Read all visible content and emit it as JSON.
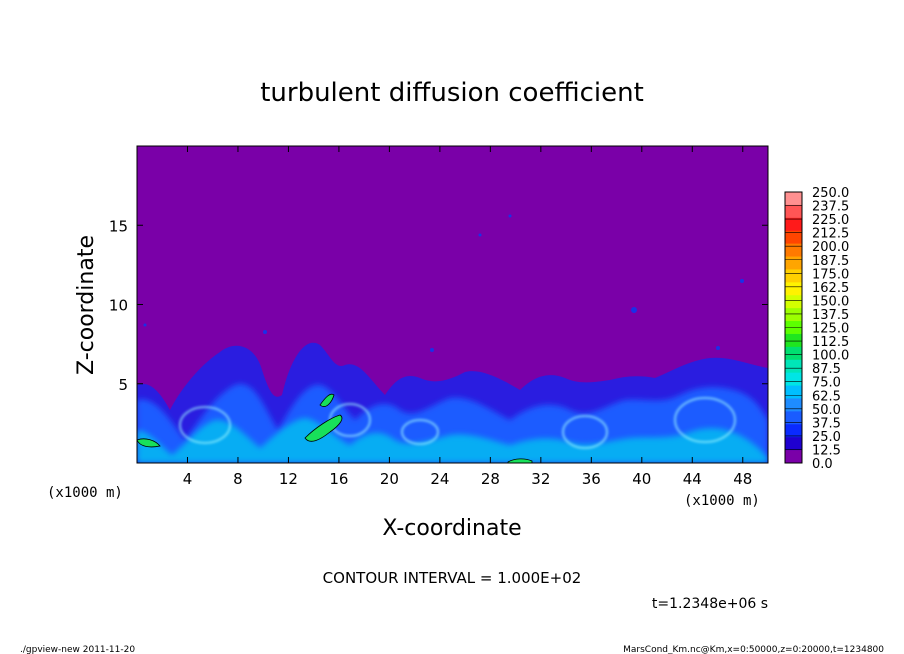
{
  "chart_data": {
    "type": "heatmap",
    "title": "turbulent diffusion coefficient",
    "xlabel": "X-coordinate",
    "ylabel": "Z-coordinate",
    "x_unit_left": "(x1000 m)",
    "x_unit_right": "(x1000 m)",
    "xlim": [
      0,
      50
    ],
    "ylim": [
      0,
      20
    ],
    "x_ticks": [
      4,
      8,
      12,
      16,
      20,
      24,
      28,
      32,
      36,
      40,
      44,
      48
    ],
    "y_ticks": [
      5,
      10,
      15
    ],
    "colorbar_levels": [
      "250.0",
      "237.5",
      "225.0",
      "212.5",
      "200.0",
      "187.5",
      "175.0",
      "162.5",
      "150.0",
      "137.5",
      "125.0",
      "112.5",
      "100.0",
      "87.5",
      "75.0",
      "62.5",
      "50.0",
      "37.5",
      "25.0",
      "12.5",
      "0.0"
    ],
    "colorbar_colors": [
      "#ff9090",
      "#ff5555",
      "#ff1a1a",
      "#ff4500",
      "#ff7a00",
      "#ffa500",
      "#ffd000",
      "#fff200",
      "#d4ff00",
      "#9cff00",
      "#5cff00",
      "#1fe61f",
      "#00e070",
      "#00e5b8",
      "#00e5e5",
      "#00bfff",
      "#1e8cff",
      "#1a5cff",
      "#0a2aff",
      "#1f00d0",
      "#7a00a8"
    ],
    "contour_interval": "CONTOUR INTERVAL = 1.000E+02",
    "time_label": "t=1.2348e+06 s",
    "background_value_color": "#7a00a8"
  },
  "footer": {
    "left": "./gpview-new  2011-11-20",
    "right": "MarsCond_Km.nc@Km,x=0:50000,z=0:20000,t=1234800"
  }
}
